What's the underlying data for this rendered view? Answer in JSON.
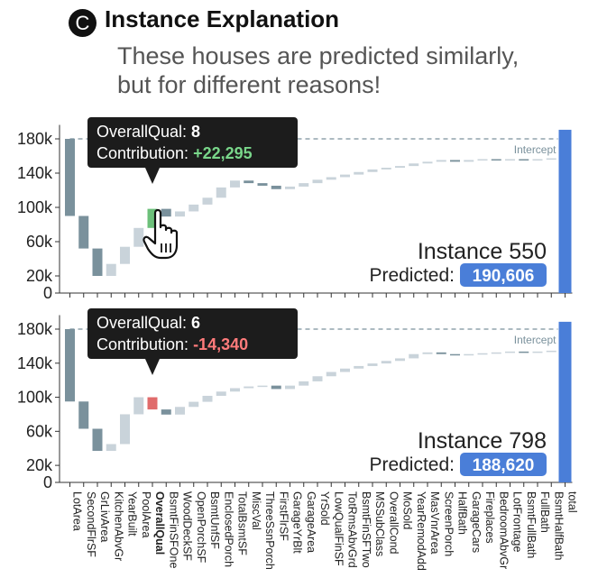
{
  "header": {
    "badge": "C",
    "title": "Instance Explanation",
    "subtitle_line1": "These houses are predicted similarly,",
    "subtitle_line2": "but for different reasons!"
  },
  "colors": {
    "positive_bar": "#c9d3da",
    "negative_bar": "#7a919c",
    "highlight_positive": "#6cc07a",
    "highlight_negative": "#e06b6b",
    "total_bar": "#4a7ed8",
    "badge_blue": "#4a7ed8",
    "tooltip_bg": "#1c1c1c",
    "tooltip_positive_text": "#79d68a",
    "tooltip_negative_text": "#ff7b7b",
    "intercept_line": "#7a919c",
    "icon_name": "pointer-hand-icon"
  },
  "chart_data": {
    "type": "waterfall",
    "categories": [
      "LotArea",
      "SecondFlrSF",
      "GrLivArea",
      "KitchenAbvGr",
      "YearBuilt",
      "PoolArea",
      "OverallQual",
      "BsmtFinSFOne",
      "WoodDeckSF",
      "OpenPorchSF",
      "BsmtUnfSF",
      "EnclosedPorch",
      "TotalBsmtSF",
      "MiscVal",
      "ThreeSsnPorch",
      "FirstFlrSF",
      "GarageYrBlt",
      "GarageArea",
      "YrSold",
      "LowQualFinSF",
      "TotRmsAbvGrd",
      "BsmtFinSFTwo",
      "MSSubClass",
      "OverallCond",
      "MoSold",
      "YearRemodAdd",
      "MasVnrArea",
      "ScreenPorch",
      "HalfBath",
      "GarageCars",
      "Fireplaces",
      "BedroomAbvGr",
      "LotFrontage",
      "BsmtFullBath",
      "FullBath",
      "BsmtHalfBath",
      "total"
    ],
    "bold_category": "OverallQual",
    "intercept": 180000,
    "intercept_label": "Intercept",
    "ylim": [
      0,
      190000
    ],
    "yticks": [
      0,
      20000,
      60000,
      100000,
      140000,
      180000
    ],
    "ytick_labels": [
      "0",
      "20k",
      "60k",
      "100k",
      "140k",
      "180k"
    ],
    "panels": [
      {
        "instance_label": "Instance 550",
        "predicted_label": "Predicted:",
        "predicted_value": "190,606",
        "predicted_number": 190606,
        "highlight_index": 6,
        "tooltip_feature": "OverallQual:",
        "tooltip_value": "8",
        "tooltip_contribution_label": "Contribution:",
        "tooltip_contribution": "+22,295",
        "values": [
          -90000,
          -38000,
          -32000,
          14000,
          20000,
          22000,
          22295,
          -9000,
          6000,
          8000,
          8000,
          12000,
          8000,
          -3000,
          -3000,
          -4000,
          3000,
          4000,
          4000,
          3000,
          3000,
          3000,
          3000,
          2000,
          2000,
          3000,
          2000,
          2000,
          -2000,
          2000,
          1000,
          -1000,
          1000,
          -1000,
          1000,
          1000
        ],
        "total": 190606
      },
      {
        "instance_label": "Instance 798",
        "predicted_label": "Predicted:",
        "predicted_value": "188,620",
        "predicted_number": 188620,
        "highlight_index": 6,
        "tooltip_feature": "OverallQual:",
        "tooltip_value": "6",
        "tooltip_contribution_label": "Contribution:",
        "tooltip_contribution": "-14,340",
        "values": [
          -85000,
          -32000,
          -26000,
          8000,
          35000,
          20000,
          -14340,
          -6000,
          9000,
          6000,
          7000,
          5000,
          4000,
          2000,
          1000,
          -4000,
          4000,
          5000,
          6000,
          5000,
          4000,
          3000,
          3000,
          3000,
          3000,
          5000,
          2000,
          -2000,
          -1000,
          1000,
          1000,
          1000,
          1000,
          -1000,
          1000,
          1000
        ],
        "total": 188620
      }
    ]
  }
}
